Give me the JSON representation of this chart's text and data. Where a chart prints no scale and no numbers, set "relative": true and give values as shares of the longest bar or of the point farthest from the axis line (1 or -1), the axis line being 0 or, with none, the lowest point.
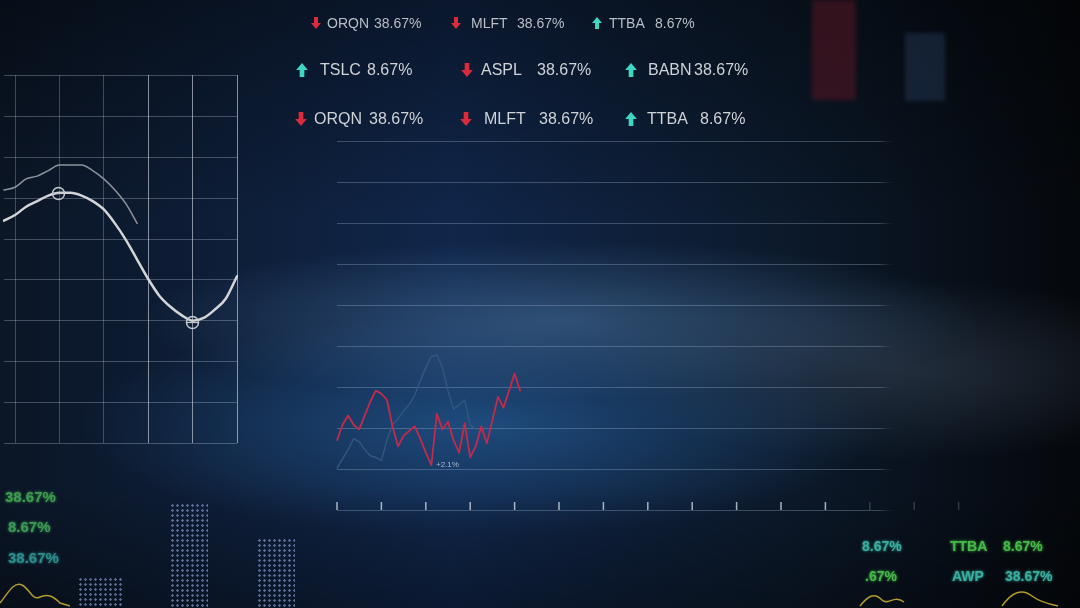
{
  "chart_data": [
    {
      "type": "other",
      "annotations": [
        "ORQN",
        "38.67%",
        "MLFT",
        "38.67%",
        "TTBA",
        "8.67%",
        "TSLC",
        "8.67%",
        "ASPL",
        "38.67%",
        "BABN",
        "38.67%",
        "ORQN",
        "38.67%",
        "MLFT",
        "38.67%",
        "TTBA",
        "8.67%"
      ]
    },
    {
      "type": "line",
      "relative": true,
      "grid": true,
      "categories": [
        null,
        null,
        null,
        null,
        null,
        null,
        null,
        null,
        null,
        null,
        null,
        null,
        null,
        null,
        null,
        null,
        null,
        null,
        null,
        null,
        null,
        null
      ],
      "series": [
        {
          "color": "#d2d4d8",
          "values": [
            0.8,
            0.82,
            0.85,
            0.87,
            0.89,
            0.9,
            0.9,
            0.89,
            0.87,
            0.84,
            0.79,
            0.73,
            0.66,
            0.59,
            0.53,
            0.49,
            0.46,
            0.44,
            0.45,
            0.48,
            0.52,
            0.6
          ]
        },
        {
          "color": "#8d929b",
          "values": [
            0.91,
            0.92,
            0.95,
            0.96,
            0.98,
            1,
            1,
            1,
            0.98,
            0.95,
            0.91,
            0.86,
            0.79,
            null,
            null,
            null,
            null,
            null,
            null,
            null,
            null,
            null
          ]
        }
      ]
    },
    {
      "type": "line",
      "relative": true,
      "grid": true,
      "categories": [
        null,
        null,
        null,
        null,
        null,
        null,
        null,
        null,
        null,
        null,
        null,
        null,
        null,
        null,
        null,
        null,
        null,
        null,
        null,
        null,
        null,
        null,
        null,
        null,
        null,
        null,
        null,
        null,
        null,
        null,
        null,
        null,
        null,
        null,
        null,
        null,
        null,
        null,
        null,
        null,
        null,
        null,
        null,
        null,
        null,
        null,
        null,
        null,
        null,
        null,
        null,
        null,
        null,
        null,
        null,
        null,
        null,
        null,
        null,
        null,
        null,
        null,
        null,
        null,
        null,
        null,
        null,
        null,
        null,
        null,
        null,
        null,
        null,
        null,
        null,
        null,
        null,
        null,
        null,
        null,
        null,
        null,
        null,
        null,
        null,
        null,
        null,
        null,
        null,
        null,
        null,
        null,
        null,
        null,
        null,
        null,
        null,
        null,
        null,
        null,
        null,
        null,
        null,
        null,
        null,
        null,
        null,
        null,
        null,
        null,
        null,
        null,
        null
      ],
      "series": [
        {
          "color": "#c42a4a",
          "values": [
            0.45,
            0.55,
            0.61,
            0.55,
            0.52,
            0.61,
            0.7,
            0.77,
            0.75,
            0.71,
            0.54,
            0.41,
            0.48,
            0.51,
            0.54,
            0.46,
            0.37,
            0.29,
            0.62,
            0.52,
            0.57,
            0.45,
            0.37,
            0.56,
            0.34,
            0.41,
            0.54,
            0.43,
            0.58,
            0.73,
            0.66,
            0.77,
            0.88,
            0.77,
            null,
            null,
            null,
            null,
            null,
            null,
            null,
            null,
            null,
            null,
            null,
            null,
            null,
            null,
            null,
            null,
            null,
            null,
            null,
            null,
            null,
            null,
            null,
            null,
            null,
            null,
            null,
            null,
            null,
            null,
            null,
            null,
            null,
            null,
            null,
            null,
            null,
            null,
            null,
            null,
            null,
            null,
            null,
            null,
            null,
            null,
            null,
            null,
            null,
            null,
            null,
            null,
            null,
            null,
            null,
            null,
            null,
            null,
            null,
            null,
            null,
            null,
            null,
            null,
            null,
            null,
            null,
            null,
            null,
            null,
            null,
            null,
            null,
            null,
            null,
            null,
            null,
            null,
            null
          ]
        },
        {
          "color": "#34577f",
          "values": [
            0.27,
            0.33,
            0.39,
            0.46,
            0.44,
            0.39,
            0.35,
            0.34,
            0.32,
            0.45,
            0.55,
            0.59,
            0.64,
            0.68,
            0.74,
            0.83,
            0.92,
            0.99,
            1,
            0.92,
            0.77,
            0.65,
            0.68,
            0.71,
            0.55,
            0.52,
            null,
            null,
            null,
            null,
            null,
            null,
            null,
            null,
            null,
            null,
            null,
            null,
            null,
            null,
            null,
            null,
            null,
            null,
            null,
            null,
            null,
            null,
            null,
            null,
            null,
            null,
            null,
            null,
            null,
            null,
            null,
            null,
            null,
            null,
            null,
            null,
            null,
            null,
            null,
            null,
            null,
            null,
            null,
            null,
            null,
            null,
            null,
            null,
            null,
            null,
            null,
            null,
            null,
            null,
            null,
            null,
            null,
            null,
            null,
            null,
            null,
            null,
            null,
            null,
            null,
            null,
            null,
            null,
            null,
            null,
            null,
            null,
            null,
            null,
            null,
            null,
            null,
            null,
            null,
            null,
            null,
            null,
            null,
            null,
            null,
            null,
            null
          ]
        }
      ],
      "annotations": [
        "+2.1%"
      ]
    },
    {
      "type": "other",
      "annotations": [
        "38.67%",
        "8.67%",
        "38.67%"
      ]
    },
    {
      "type": "other",
      "annotations": [
        "8.67%",
        "TTBA",
        "8.67%",
        ".67%",
        "AWP",
        "38.67%"
      ]
    }
  ]
}
